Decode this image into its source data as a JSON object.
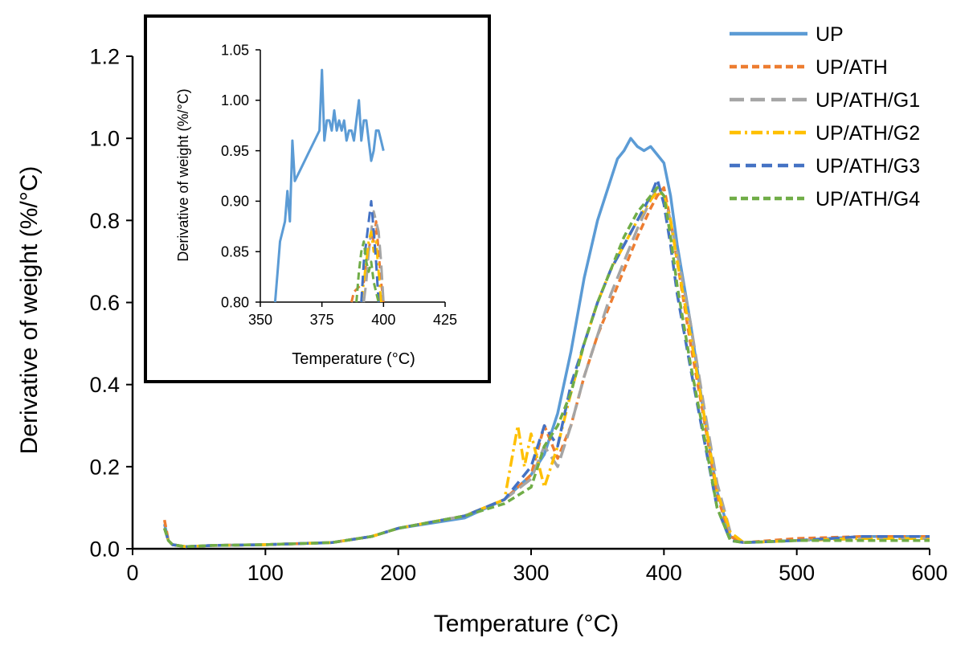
{
  "chart_data": [
    {
      "id": "main",
      "type": "line",
      "title": "",
      "xlabel": "Temperature (°C)",
      "ylabel": "Derivative of weight (%/°C)",
      "xlim": [
        0,
        600
      ],
      "ylim": [
        0,
        1.2
      ],
      "x_ticks": [
        0,
        100,
        200,
        300,
        400,
        500,
        600
      ],
      "y_ticks": [
        "0.0",
        "0.2",
        "0.4",
        "0.6",
        "0.8",
        "1.0",
        "1.2"
      ],
      "grid": false,
      "legend_position": "top-right",
      "series": [
        {
          "name": "UP",
          "color": "#5b9bd5",
          "dash": "solid",
          "x": [
            24,
            27,
            30,
            40,
            60,
            100,
            150,
            180,
            200,
            250,
            280,
            300,
            310,
            320,
            330,
            340,
            350,
            360,
            365,
            370,
            375,
            380,
            385,
            390,
            395,
            400,
            405,
            410,
            420,
            430,
            440,
            450,
            460,
            500,
            550,
            600
          ],
          "y": [
            0.06,
            0.02,
            0.01,
            0.005,
            0.008,
            0.01,
            0.015,
            0.03,
            0.05,
            0.075,
            0.12,
            0.18,
            0.23,
            0.33,
            0.48,
            0.66,
            0.8,
            0.9,
            0.95,
            0.97,
            1.0,
            0.98,
            0.97,
            0.98,
            0.96,
            0.94,
            0.86,
            0.74,
            0.55,
            0.33,
            0.14,
            0.03,
            0.015,
            0.02,
            0.03,
            0.03
          ]
        },
        {
          "name": "UP/ATH",
          "color": "#ed7d31",
          "dash": "short",
          "x": [
            24,
            27,
            30,
            40,
            60,
            100,
            150,
            180,
            200,
            250,
            280,
            300,
            310,
            320,
            330,
            340,
            350,
            360,
            370,
            380,
            390,
            395,
            400,
            405,
            410,
            420,
            430,
            440,
            450,
            460,
            500,
            550,
            600
          ],
          "y": [
            0.07,
            0.02,
            0.01,
            0.005,
            0.008,
            0.01,
            0.015,
            0.03,
            0.05,
            0.08,
            0.12,
            0.18,
            0.3,
            0.22,
            0.3,
            0.42,
            0.52,
            0.6,
            0.68,
            0.76,
            0.83,
            0.86,
            0.88,
            0.8,
            0.7,
            0.5,
            0.32,
            0.13,
            0.03,
            0.015,
            0.025,
            0.03,
            0.03
          ]
        },
        {
          "name": "UP/ATH/G1",
          "color": "#a5a5a5",
          "dash": "long",
          "x": [
            24,
            27,
            30,
            40,
            60,
            100,
            150,
            180,
            200,
            250,
            280,
            300,
            310,
            320,
            330,
            340,
            350,
            360,
            370,
            380,
            390,
            395,
            400,
            405,
            410,
            420,
            430,
            440,
            450,
            460,
            500,
            550,
            600
          ],
          "y": [
            0.05,
            0.02,
            0.01,
            0.005,
            0.008,
            0.01,
            0.015,
            0.03,
            0.05,
            0.08,
            0.12,
            0.17,
            0.25,
            0.2,
            0.3,
            0.42,
            0.52,
            0.62,
            0.7,
            0.78,
            0.85,
            0.88,
            0.86,
            0.8,
            0.72,
            0.55,
            0.35,
            0.16,
            0.04,
            0.015,
            0.02,
            0.025,
            0.025
          ]
        },
        {
          "name": "UP/ATH/G2",
          "color": "#ffc000",
          "dash": "dashdot",
          "x": [
            24,
            27,
            30,
            40,
            60,
            100,
            150,
            180,
            200,
            250,
            280,
            290,
            295,
            300,
            310,
            320,
            330,
            340,
            350,
            360,
            370,
            380,
            390,
            395,
            400,
            405,
            410,
            420,
            430,
            440,
            450,
            460,
            500,
            550,
            600
          ],
          "y": [
            0.05,
            0.02,
            0.01,
            0.005,
            0.008,
            0.01,
            0.015,
            0.03,
            0.05,
            0.08,
            0.12,
            0.3,
            0.2,
            0.28,
            0.15,
            0.25,
            0.38,
            0.5,
            0.6,
            0.68,
            0.74,
            0.8,
            0.85,
            0.87,
            0.86,
            0.8,
            0.7,
            0.52,
            0.33,
            0.14,
            0.04,
            0.015,
            0.02,
            0.025,
            0.025
          ]
        },
        {
          "name": "UP/ATH/G3",
          "color": "#4472c4",
          "dash": "medium",
          "x": [
            24,
            27,
            30,
            40,
            60,
            100,
            150,
            180,
            200,
            250,
            280,
            300,
            310,
            320,
            330,
            340,
            350,
            360,
            370,
            380,
            390,
            395,
            400,
            405,
            410,
            420,
            430,
            440,
            450,
            460,
            500,
            550,
            600
          ],
          "y": [
            0.05,
            0.02,
            0.01,
            0.005,
            0.008,
            0.01,
            0.015,
            0.03,
            0.05,
            0.08,
            0.12,
            0.2,
            0.3,
            0.25,
            0.4,
            0.5,
            0.6,
            0.68,
            0.74,
            0.8,
            0.86,
            0.9,
            0.84,
            0.74,
            0.62,
            0.44,
            0.27,
            0.1,
            0.02,
            0.015,
            0.02,
            0.03,
            0.03
          ]
        },
        {
          "name": "UP/ATH/G4",
          "color": "#70ad47",
          "dash": "short",
          "x": [
            24,
            27,
            30,
            40,
            60,
            100,
            150,
            180,
            200,
            250,
            280,
            300,
            310,
            320,
            330,
            340,
            350,
            360,
            370,
            380,
            390,
            395,
            400,
            405,
            410,
            420,
            430,
            440,
            450,
            460,
            500,
            550,
            600
          ],
          "y": [
            0.05,
            0.02,
            0.01,
            0.005,
            0.008,
            0.01,
            0.015,
            0.03,
            0.05,
            0.08,
            0.11,
            0.15,
            0.25,
            0.3,
            0.38,
            0.5,
            0.6,
            0.68,
            0.76,
            0.82,
            0.86,
            0.88,
            0.86,
            0.76,
            0.64,
            0.45,
            0.28,
            0.1,
            0.02,
            0.015,
            0.02,
            0.02,
            0.02
          ]
        }
      ]
    },
    {
      "id": "inset",
      "type": "line",
      "title": "",
      "xlabel": "Temperature (°C)",
      "ylabel": "Derivative of weight (%/°C)",
      "xlim": [
        350,
        425
      ],
      "ylim": [
        0.8,
        1.05
      ],
      "x_ticks": [
        "350",
        "375",
        "400",
        "425"
      ],
      "y_ticks": [
        "0.80",
        "0.85",
        "0.90",
        "0.95",
        "1.00",
        "1.05"
      ],
      "grid": false,
      "series": [
        {
          "name": "UP",
          "color": "#5b9bd5",
          "dash": "solid",
          "x": [
            356,
            357,
            358,
            359,
            360,
            361,
            362,
            363,
            364,
            366,
            368,
            370,
            372,
            374,
            375,
            376,
            377,
            378,
            379,
            380,
            381,
            382,
            383,
            384,
            385,
            386,
            387,
            388,
            389,
            390,
            391,
            392,
            393,
            394,
            395,
            396,
            397,
            398,
            399,
            400
          ],
          "y": [
            0.8,
            0.83,
            0.86,
            0.87,
            0.88,
            0.91,
            0.88,
            0.96,
            0.92,
            0.93,
            0.94,
            0.95,
            0.96,
            0.97,
            1.03,
            0.96,
            0.98,
            0.98,
            0.97,
            0.99,
            0.97,
            0.98,
            0.97,
            0.98,
            0.96,
            0.97,
            0.97,
            0.96,
            0.98,
            1.0,
            0.96,
            0.98,
            0.98,
            0.96,
            0.94,
            0.95,
            0.97,
            0.97,
            0.96,
            0.95
          ]
        },
        {
          "name": "UP/ATH",
          "color": "#ed7d31",
          "dash": "short",
          "x": [
            387,
            388,
            392,
            393,
            394,
            395,
            396,
            397,
            398,
            399,
            400
          ],
          "y": [
            0.8,
            0.81,
            0.82,
            0.84,
            0.85,
            0.87,
            0.86,
            0.88,
            0.85,
            0.82,
            0.8
          ]
        },
        {
          "name": "UP/ATH/G1",
          "color": "#a5a5a5",
          "dash": "long",
          "x": [
            392,
            393,
            394,
            395,
            396,
            397,
            398,
            399,
            400
          ],
          "y": [
            0.8,
            0.82,
            0.85,
            0.87,
            0.89,
            0.88,
            0.87,
            0.84,
            0.8
          ]
        },
        {
          "name": "UP/ATH/G2",
          "color": "#ffc000",
          "dash": "dashdot",
          "x": [
            391,
            392,
            393,
            394,
            395,
            396,
            397,
            398,
            399
          ],
          "y": [
            0.8,
            0.82,
            0.84,
            0.86,
            0.87,
            0.85,
            0.86,
            0.83,
            0.8
          ]
        },
        {
          "name": "UP/ATH/G3",
          "color": "#4472c4",
          "dash": "medium",
          "x": [
            391,
            392,
            393,
            394,
            395,
            396,
            397,
            398
          ],
          "y": [
            0.8,
            0.84,
            0.86,
            0.88,
            0.9,
            0.87,
            0.84,
            0.8
          ]
        },
        {
          "name": "UP/ATH/G4",
          "color": "#70ad47",
          "dash": "short",
          "x": [
            389,
            390,
            391,
            392,
            393,
            394,
            395,
            396,
            397,
            398
          ],
          "y": [
            0.8,
            0.83,
            0.85,
            0.86,
            0.84,
            0.83,
            0.84,
            0.82,
            0.81,
            0.8
          ]
        }
      ]
    }
  ]
}
